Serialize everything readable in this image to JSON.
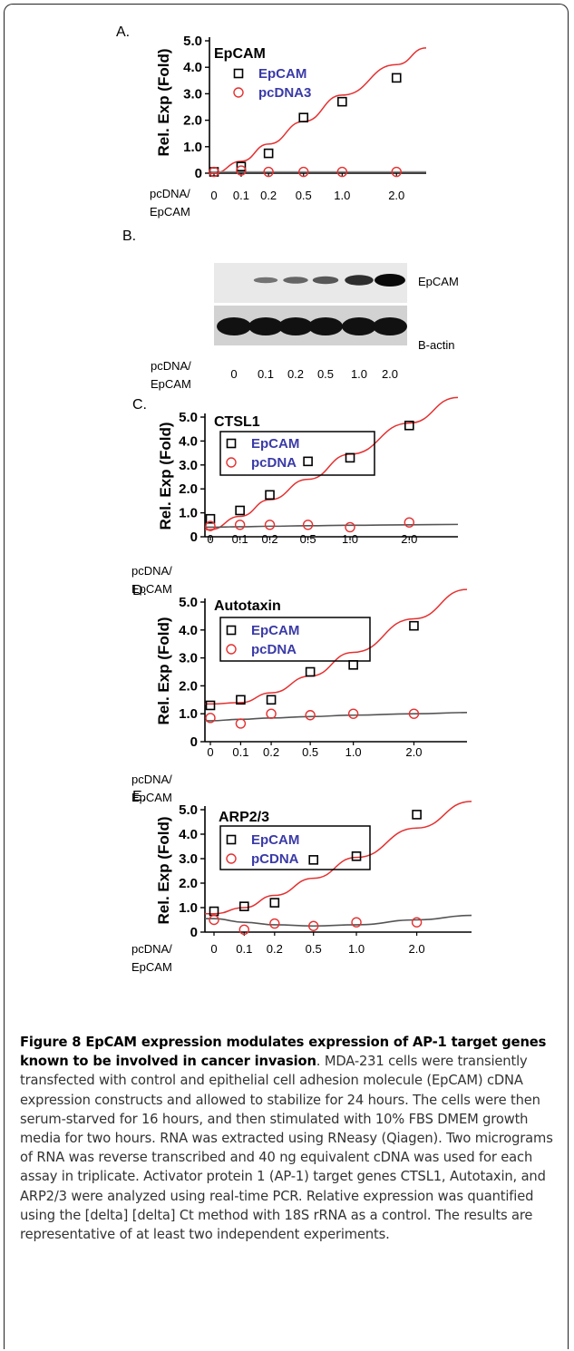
{
  "figure": {
    "caption_title": "Figure 8 EpCAM expression modulates expression of AP-1 target genes known to be involved in cancer invasion",
    "caption_body": ". MDA-231 cells were transiently transfected with control and epithelial cell adhesion molecule (EpCAM) cDNA expression constructs and allowed to stabilize for 24 hours. The cells were then serum-starved for 16 hours, and then stimulated with 10% FBS DMEM growth media for two hours. RNA was extracted using RNeasy (Qiagen). Two micrograms of RNA was reverse transcribed and 40 ng equivalent cDNA was used for each assay in triplicate. Activator protein 1 (AP-1) target genes CTSL1, Autotaxin, and ARP2/3 were analyzed using real-time PCR. Relative expression was quantified using the [delta] [delta] Ct method with 18S rRNA as a control. The results are representative of at least two independent experiments."
  },
  "blot": {
    "panel": "B.",
    "band1": "EpCAM",
    "band2": "B-actin",
    "xlabel_line1": "pcDNA/",
    "xlabel_line2": "EpCAM",
    "lanes": [
      "0",
      "0.1",
      "0.2",
      "0.5",
      "1.0",
      "2.0"
    ],
    "epcam_band_intensity": [
      0.0,
      0.25,
      0.35,
      0.45,
      0.75,
      1.0
    ],
    "actin_band_intensity": [
      1.0,
      1.0,
      1.0,
      1.0,
      1.0,
      1.0
    ]
  },
  "chart_data": [
    {
      "type": "scatter",
      "panel": "A.",
      "title": "EpCAM",
      "ylabel": "Rel. Exp (Fold)",
      "xlabel_line1": "pcDNA/",
      "xlabel_line2": "EpCAM",
      "categories": [
        "0",
        "0.1",
        "0.2",
        "0.5",
        "1.0",
        "2.0"
      ],
      "yticks": [
        "0",
        "1.0",
        "2.0",
        "3.0",
        "4.0",
        "5.0"
      ],
      "ylim": [
        0,
        5.0
      ],
      "legend_boxed": false,
      "series": [
        {
          "name": "EpCAM",
          "marker": "square",
          "color": "#000000",
          "values": [
            0.05,
            0.25,
            0.75,
            2.1,
            2.7,
            3.6
          ],
          "fit_color": "#e53030",
          "fit": [
            0.0,
            0.45,
            1.1,
            1.95,
            2.95,
            4.1
          ]
        },
        {
          "name": "pcDNA3",
          "marker": "circle",
          "color": "#e53030",
          "values": [
            0.05,
            0.1,
            0.05,
            0.05,
            0.05,
            0.05
          ],
          "fit_color": "#888888",
          "fit": [
            0.05,
            0.05,
            0.05,
            0.05,
            0.05,
            0.05
          ]
        }
      ]
    },
    {
      "type": "scatter",
      "panel": "C.",
      "title": "CTSL1",
      "ylabel": "Rel. Exp (Fold)",
      "xlabel_line1": "pcDNA/",
      "xlabel_line2": "EpCAM",
      "categories": [
        "0",
        "0.1",
        "0.2",
        "0.5",
        "1.0",
        "2.0"
      ],
      "yticks": [
        "0",
        "1.0",
        "2.0",
        "3.0",
        "4.0",
        "5.0"
      ],
      "ylim": [
        0,
        5.0
      ],
      "legend_boxed": true,
      "series": [
        {
          "name": "EpCAM",
          "marker": "square",
          "color": "#000000",
          "values": [
            0.75,
            1.1,
            1.75,
            3.15,
            3.3,
            4.65
          ],
          "fit_color": "#e53030",
          "fit": [
            0.3,
            0.85,
            1.55,
            2.4,
            3.45,
            4.75
          ]
        },
        {
          "name": "pcDNA",
          "marker": "circle",
          "color": "#e53030",
          "values": [
            0.45,
            0.5,
            0.5,
            0.5,
            0.4,
            0.6
          ],
          "fit_color": "#555555",
          "fit": [
            0.4,
            0.42,
            0.44,
            0.46,
            0.48,
            0.5
          ]
        }
      ]
    },
    {
      "type": "scatter",
      "panel": "D.",
      "title": "Autotaxin",
      "ylabel": "Rel. Exp (Fold)",
      "xlabel_line1": "pcDNA/",
      "xlabel_line2": "EpCAM",
      "categories": [
        "0",
        "0.1",
        "0.2",
        "0.5",
        "1.0",
        "2.0"
      ],
      "yticks": [
        "0",
        "1.0",
        "2.0",
        "3.0",
        "4.0",
        "5.0"
      ],
      "ylim": [
        0,
        5.0
      ],
      "legend_boxed": true,
      "series": [
        {
          "name": "EpCAM",
          "marker": "square",
          "color": "#000000",
          "values": [
            1.3,
            1.5,
            1.5,
            2.5,
            2.75,
            4.15
          ],
          "fit_color": "#e53030",
          "fit": [
            1.35,
            1.4,
            1.75,
            2.35,
            3.2,
            4.4
          ]
        },
        {
          "name": "pcDNA",
          "marker": "circle",
          "color": "#e53030",
          "values": [
            0.85,
            0.65,
            1.0,
            0.95,
            1.0,
            1.0
          ],
          "fit_color": "#555555",
          "fit": [
            0.75,
            0.8,
            0.85,
            0.9,
            0.95,
            1.0
          ]
        }
      ]
    },
    {
      "type": "scatter",
      "panel": "E.",
      "title": "ARP2/3",
      "ylabel": "Rel. Exp (Fold)",
      "xlabel_line1": "pcDNA/",
      "xlabel_line2": "EpCAM",
      "categories": [
        "0",
        "0.1",
        "0.2",
        "0.5",
        "1.0",
        "2.0"
      ],
      "yticks": [
        "0",
        "1.0",
        "2.0",
        "3.0",
        "4.0",
        "5.0"
      ],
      "ylim": [
        0,
        5.0
      ],
      "legend_boxed": true,
      "series": [
        {
          "name": "EpCAM",
          "marker": "square",
          "color": "#000000",
          "values": [
            0.85,
            1.05,
            1.2,
            2.95,
            3.1,
            4.8
          ],
          "fit_color": "#e53030",
          "fit": [
            0.75,
            1.0,
            1.5,
            2.2,
            3.05,
            4.25
          ]
        },
        {
          "name": "pCDNA",
          "marker": "circle",
          "color": "#e53030",
          "values": [
            0.5,
            0.1,
            0.35,
            0.25,
            0.4,
            0.4
          ],
          "fit_color": "#555555",
          "fit": [
            0.55,
            0.4,
            0.3,
            0.25,
            0.3,
            0.5
          ]
        }
      ]
    }
  ]
}
